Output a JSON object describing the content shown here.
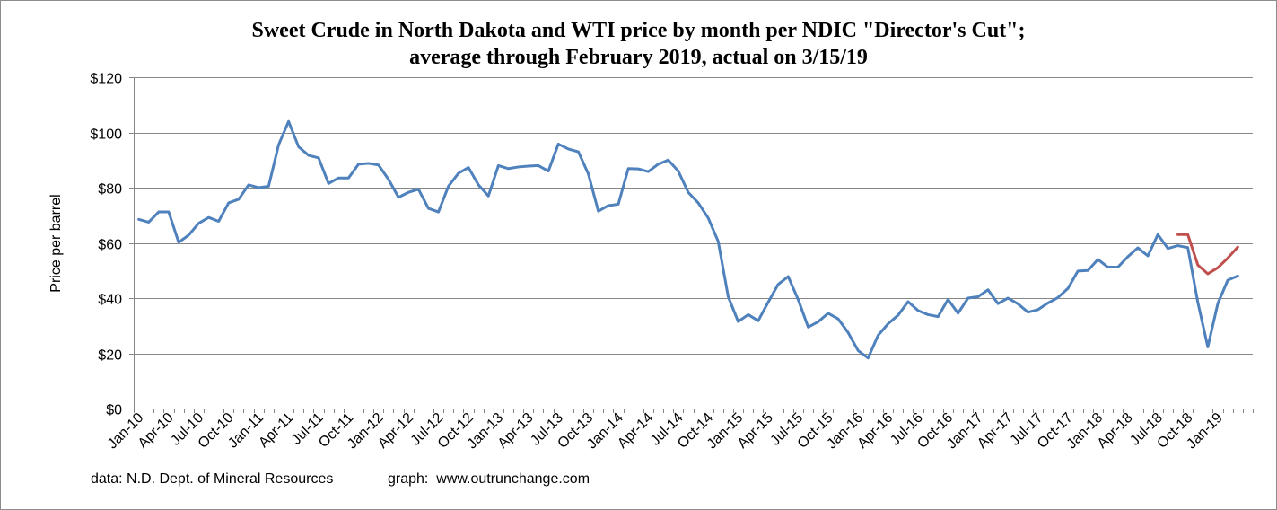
{
  "chart_data": {
    "type": "line",
    "title_line1": "Sweet Crude in North Dakota and WTI price by month per NDIC \"Director's Cut\";",
    "title_line2": "average through February 2019, actual on 3/15/19",
    "ylabel": "Price per barrel",
    "ylim": [
      0,
      120
    ],
    "y_ticks": [
      0,
      20,
      40,
      60,
      80,
      100,
      120
    ],
    "y_tick_labels": [
      "$0",
      "$20",
      "$40",
      "$60",
      "$80",
      "$100",
      "$120"
    ],
    "grid": "horizontal",
    "x_tick_labels": [
      "Jan-10",
      "Apr-10",
      "Jul-10",
      "Oct-10",
      "Jan-11",
      "Apr-11",
      "Jul-11",
      "Oct-11",
      "Jan-12",
      "Apr-12",
      "Jul-12",
      "Oct-12",
      "Jan-13",
      "Apr-13",
      "Jul-13",
      "Oct-13",
      "Jan-14",
      "Apr-14",
      "Jul-14",
      "Oct-14",
      "Jan-15",
      "Apr-15",
      "Jul-15",
      "Oct-15",
      "Jan-16",
      "Apr-16",
      "Jul-16",
      "Oct-16",
      "Jan-17",
      "Apr-17",
      "Jul-17",
      "Oct-17",
      "Jan-18",
      "Apr-18",
      "Jul-18",
      "Oct-18",
      "Jan-19"
    ],
    "x_start": "Jan-10",
    "series": [
      {
        "color": "#4f81bd",
        "start_month_index": 0,
        "values": [
          68.5,
          67.5,
          71.2,
          71.2,
          60.2,
          62.8,
          67.1,
          69.2,
          67.8,
          74.5,
          75.8,
          81.0,
          80.0,
          80.5,
          95.5,
          104.0,
          94.8,
          91.7,
          90.8,
          81.5,
          83.5,
          83.5,
          88.5,
          88.8,
          88.2,
          83.0,
          76.5,
          78.3,
          79.4,
          72.5,
          71.2,
          80.5,
          85.2,
          87.3,
          81.0,
          77.0,
          88.0,
          86.9,
          87.5,
          87.8,
          88.0,
          86.0,
          95.8,
          94.0,
          93.0,
          85.0,
          71.5,
          73.5,
          74.0,
          86.9,
          86.8,
          85.8,
          88.5,
          90.0,
          86.0,
          78.3,
          74.5,
          69.0,
          60.5,
          40.5,
          31.5,
          34.0,
          31.8,
          38.5,
          45.0,
          47.8,
          39.5,
          29.5,
          31.4,
          34.5,
          32.5,
          27.5,
          21.0,
          18.3,
          26.5,
          30.7,
          33.8,
          38.7,
          35.5,
          34.0,
          33.3,
          39.5,
          34.5,
          40.0,
          40.5,
          43.0,
          38.0,
          40.0,
          37.9,
          34.9,
          35.8,
          38.2,
          40.2,
          43.5,
          49.8,
          50.0,
          54.0,
          51.2,
          51.2,
          55.0,
          58.2,
          55.3,
          63.0,
          58.0,
          59.0,
          58.3,
          38.5,
          22.3,
          38.0,
          46.5,
          48.0
        ]
      },
      {
        "color": "#c0504d",
        "start_month_index": 104,
        "values": [
          63.0,
          63.0,
          52.0,
          48.8,
          51.0,
          54.5,
          58.5
        ]
      }
    ]
  },
  "footer": {
    "data_source": "data: N.D. Dept. of Mineral Resources",
    "graph_credit": "graph:  www.outrunchange.com"
  }
}
